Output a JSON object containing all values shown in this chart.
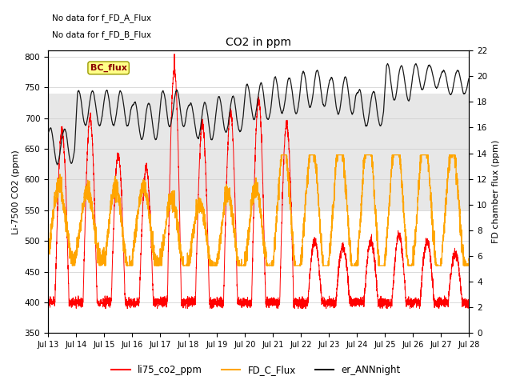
{
  "title": "CO2 in ppm",
  "ylabel_left": "Li-7500 CO2 (ppm)",
  "ylabel_right": "FD chamber flux (ppm)",
  "xlim": [
    0,
    15
  ],
  "ylim_left": [
    350,
    810
  ],
  "ylim_right": [
    0,
    22
  ],
  "yticks_left": [
    350,
    400,
    450,
    500,
    550,
    600,
    650,
    700,
    750,
    800
  ],
  "yticks_right": [
    0,
    2,
    4,
    6,
    8,
    10,
    12,
    14,
    16,
    18,
    20,
    22
  ],
  "xtick_labels": [
    "Jul 13",
    "Jul 14",
    "Jul 15",
    "Jul 16",
    "Jul 17",
    "Jul 18",
    "Jul 19",
    "Jul 20",
    "Jul 21",
    "Jul 22",
    "Jul 23",
    "Jul 24",
    "Jul 25",
    "Jul 26",
    "Jul 27",
    "Jul 28"
  ],
  "shade_ymin": 550,
  "shade_ymax": 740,
  "annotation_text1": "No data for f_FD_A_Flux",
  "annotation_text2": "No data for f_FD_B_Flux",
  "bc_flux_label": "BC_flux",
  "legend_labels": [
    "li75_co2_ppm",
    "FD_C_Flux",
    "er_ANNnight"
  ],
  "color_red": "#ff0000",
  "color_orange": "#ffa500",
  "color_black": "#1a1a1a",
  "background_color": "#ffffff",
  "grid_color": "#cccccc"
}
